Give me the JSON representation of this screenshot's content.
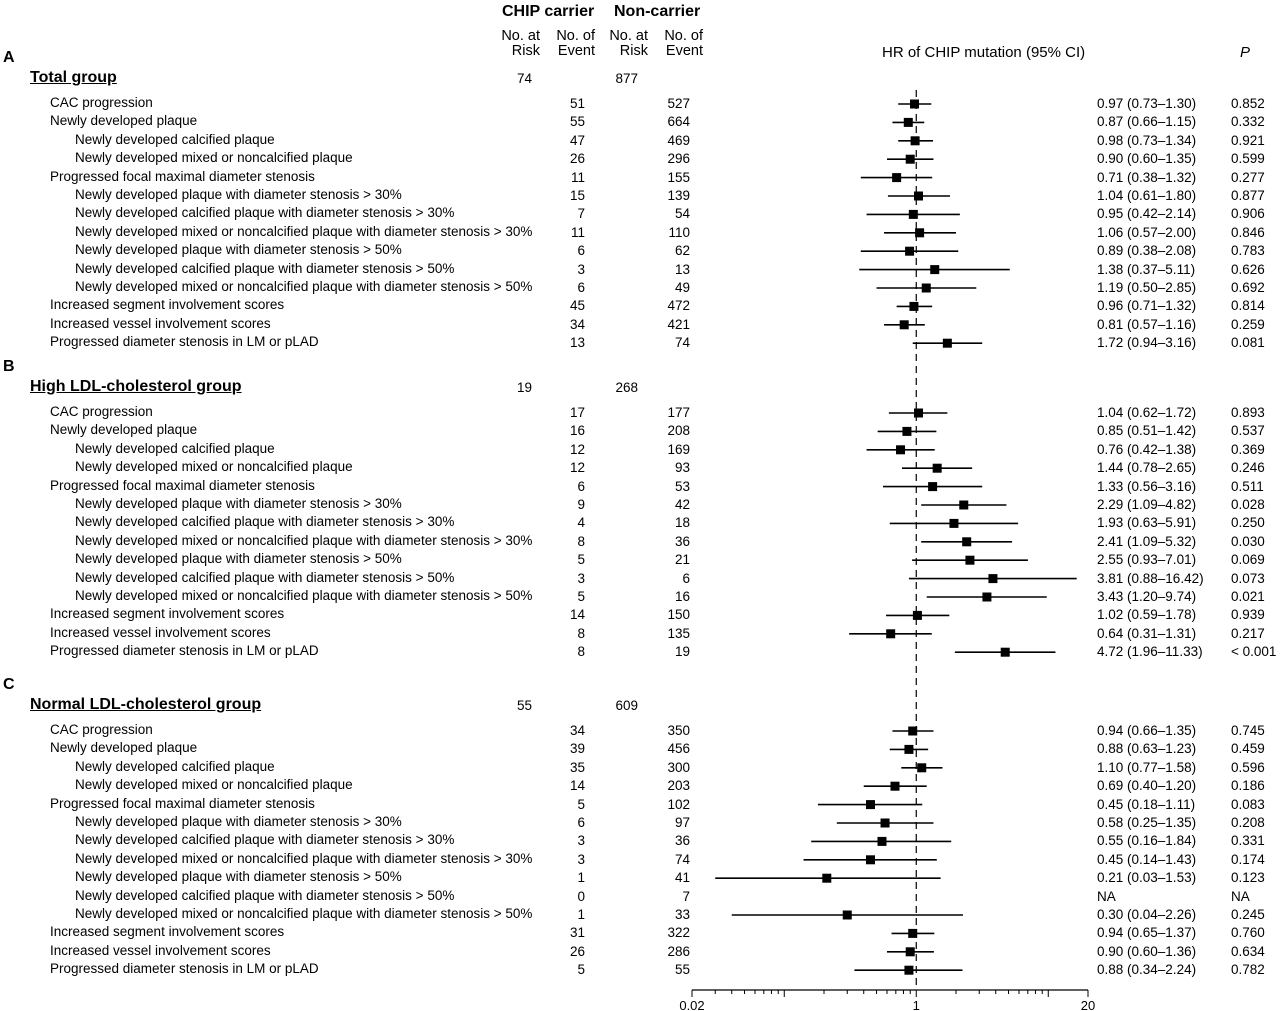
{
  "header": {
    "carrier_label": "CHIP carrier",
    "noncarrier_label": "Non-carrier",
    "no_at_risk": [
      "No. at",
      "Risk"
    ],
    "no_of_event": [
      "No. of",
      "Event"
    ],
    "hr_label": "HR of CHIP mutation (95% CI)",
    "p_label": "P"
  },
  "chart_data": {
    "type": "forest",
    "x_scale": "log",
    "xlim": [
      0.02,
      20
    ],
    "x_ticks": [
      "0.02",
      "1",
      "20"
    ],
    "reference_line": 1,
    "groups": [
      {
        "letter": "A",
        "title": "Total group",
        "carrier_at_risk": "74",
        "noncarrier_at_risk": "877",
        "rows": [
          {
            "label": "CAC progression",
            "indent": 1,
            "carrier_events": "51",
            "noncarrier_events": "527",
            "hr": 0.97,
            "lo": 0.73,
            "hi": 1.3,
            "hr_text": "0.97 (0.73–1.30)",
            "p": "0.852"
          },
          {
            "label": "Newly developed plaque",
            "indent": 1,
            "carrier_events": "55",
            "noncarrier_events": "664",
            "hr": 0.87,
            "lo": 0.66,
            "hi": 1.15,
            "hr_text": "0.87 (0.66–1.15)",
            "p": "0.332"
          },
          {
            "label": "Newly developed calcified plaque",
            "indent": 2,
            "carrier_events": "47",
            "noncarrier_events": "469",
            "hr": 0.98,
            "lo": 0.73,
            "hi": 1.34,
            "hr_text": "0.98 (0.73–1.34)",
            "p": "0.921"
          },
          {
            "label": "Newly developed mixed or noncalcified plaque",
            "indent": 2,
            "carrier_events": "26",
            "noncarrier_events": "296",
            "hr": 0.9,
            "lo": 0.6,
            "hi": 1.35,
            "hr_text": "0.90 (0.60–1.35)",
            "p": "0.599"
          },
          {
            "label": "Progressed focal maximal diameter stenosis",
            "indent": 1,
            "carrier_events": "11",
            "noncarrier_events": "155",
            "hr": 0.71,
            "lo": 0.38,
            "hi": 1.32,
            "hr_text": "0.71 (0.38–1.32)",
            "p": "0.277"
          },
          {
            "label": "Newly developed plaque with diameter stenosis > 30%",
            "indent": 2,
            "carrier_events": "15",
            "noncarrier_events": "139",
            "hr": 1.04,
            "lo": 0.61,
            "hi": 1.8,
            "hr_text": "1.04 (0.61–1.80)",
            "p": "0.877"
          },
          {
            "label": "Newly developed calcified plaque with diameter stenosis > 30%",
            "indent": 2,
            "carrier_events": "7",
            "noncarrier_events": "54",
            "hr": 0.95,
            "lo": 0.42,
            "hi": 2.14,
            "hr_text": "0.95 (0.42–2.14)",
            "p": "0.906"
          },
          {
            "label": "Newly developed mixed or noncalcified plaque with diameter stenosis > 30%",
            "indent": 2,
            "carrier_events": "11",
            "noncarrier_events": "110",
            "hr": 1.06,
            "lo": 0.57,
            "hi": 2.0,
            "hr_text": "1.06 (0.57–2.00)",
            "p": "0.846"
          },
          {
            "label": "Newly developed plaque with diameter stenosis > 50%",
            "indent": 2,
            "carrier_events": "6",
            "noncarrier_events": "62",
            "hr": 0.89,
            "lo": 0.38,
            "hi": 2.08,
            "hr_text": "0.89 (0.38–2.08)",
            "p": "0.783"
          },
          {
            "label": "Newly developed calcified plaque with diameter stenosis > 50%",
            "indent": 2,
            "carrier_events": "3",
            "noncarrier_events": "13",
            "hr": 1.38,
            "lo": 0.37,
            "hi": 5.11,
            "hr_text": "1.38 (0.37–5.11)",
            "p": "0.626"
          },
          {
            "label": "Newly developed mixed or noncalcified plaque with diameter stenosis > 50%",
            "indent": 2,
            "carrier_events": "6",
            "noncarrier_events": "49",
            "hr": 1.19,
            "lo": 0.5,
            "hi": 2.85,
            "hr_text": "1.19 (0.50–2.85)",
            "p": "0.692"
          },
          {
            "label": "Increased segment involvement scores",
            "indent": 1,
            "carrier_events": "45",
            "noncarrier_events": "472",
            "hr": 0.96,
            "lo": 0.71,
            "hi": 1.32,
            "hr_text": "0.96 (0.71–1.32)",
            "p": "0.814"
          },
          {
            "label": "Increased vessel involvement scores",
            "indent": 1,
            "carrier_events": "34",
            "noncarrier_events": "421",
            "hr": 0.81,
            "lo": 0.57,
            "hi": 1.16,
            "hr_text": "0.81 (0.57–1.16)",
            "p": "0.259"
          },
          {
            "label": "Progressed diameter stenosis in LM or pLAD",
            "indent": 1,
            "carrier_events": "13",
            "noncarrier_events": "74",
            "hr": 1.72,
            "lo": 0.94,
            "hi": 3.16,
            "hr_text": "1.72 (0.94–3.16)",
            "p": "0.081"
          }
        ]
      },
      {
        "letter": "B",
        "title": "High LDL-cholesterol group",
        "carrier_at_risk": "19",
        "noncarrier_at_risk": "268",
        "rows": [
          {
            "label": "CAC progression",
            "indent": 1,
            "carrier_events": "17",
            "noncarrier_events": "177",
            "hr": 1.04,
            "lo": 0.62,
            "hi": 1.72,
            "hr_text": "1.04 (0.62–1.72)",
            "p": "0.893"
          },
          {
            "label": "Newly developed plaque",
            "indent": 1,
            "carrier_events": "16",
            "noncarrier_events": "208",
            "hr": 0.85,
            "lo": 0.51,
            "hi": 1.42,
            "hr_text": "0.85 (0.51–1.42)",
            "p": "0.537"
          },
          {
            "label": "Newly developed calcified plaque",
            "indent": 2,
            "carrier_events": "12",
            "noncarrier_events": "169",
            "hr": 0.76,
            "lo": 0.42,
            "hi": 1.38,
            "hr_text": "0.76 (0.42–1.38)",
            "p": "0.369"
          },
          {
            "label": "Newly developed mixed or noncalcified plaque",
            "indent": 2,
            "carrier_events": "12",
            "noncarrier_events": "93",
            "hr": 1.44,
            "lo": 0.78,
            "hi": 2.65,
            "hr_text": "1.44 (0.78–2.65)",
            "p": "0.246"
          },
          {
            "label": "Progressed focal maximal diameter stenosis",
            "indent": 1,
            "carrier_events": "6",
            "noncarrier_events": "53",
            "hr": 1.33,
            "lo": 0.56,
            "hi": 3.16,
            "hr_text": "1.33 (0.56–3.16)",
            "p": "0.511"
          },
          {
            "label": "Newly developed plaque with diameter stenosis > 30%",
            "indent": 2,
            "carrier_events": "9",
            "noncarrier_events": "42",
            "hr": 2.29,
            "lo": 1.09,
            "hi": 4.82,
            "hr_text": "2.29 (1.09–4.82)",
            "p": "0.028"
          },
          {
            "label": "Newly developed calcified plaque with diameter stenosis > 30%",
            "indent": 2,
            "carrier_events": "4",
            "noncarrier_events": "18",
            "hr": 1.93,
            "lo": 0.63,
            "hi": 5.91,
            "hr_text": "1.93 (0.63–5.91)",
            "p": "0.250"
          },
          {
            "label": "Newly developed mixed or noncalcified plaque with diameter stenosis > 30%",
            "indent": 2,
            "carrier_events": "8",
            "noncarrier_events": "36",
            "hr": 2.41,
            "lo": 1.09,
            "hi": 5.32,
            "hr_text": "2.41 (1.09–5.32)",
            "p": "0.030"
          },
          {
            "label": "Newly developed plaque with diameter stenosis > 50%",
            "indent": 2,
            "carrier_events": "5",
            "noncarrier_events": "21",
            "hr": 2.55,
            "lo": 0.93,
            "hi": 7.01,
            "hr_text": "2.55 (0.93–7.01)",
            "p": "0.069"
          },
          {
            "label": "Newly developed calcified plaque with diameter stenosis > 50%",
            "indent": 2,
            "carrier_events": "3",
            "noncarrier_events": "6",
            "hr": 3.81,
            "lo": 0.88,
            "hi": 16.42,
            "hr_text": "3.81 (0.88–16.42)",
            "p": "0.073"
          },
          {
            "label": "Newly developed mixed or noncalcified plaque with diameter stenosis > 50%",
            "indent": 2,
            "carrier_events": "5",
            "noncarrier_events": "16",
            "hr": 3.43,
            "lo": 1.2,
            "hi": 9.74,
            "hr_text": "3.43 (1.20–9.74)",
            "p": "0.021"
          },
          {
            "label": "Increased segment involvement scores",
            "indent": 1,
            "carrier_events": "14",
            "noncarrier_events": "150",
            "hr": 1.02,
            "lo": 0.59,
            "hi": 1.78,
            "hr_text": "1.02 (0.59–1.78)",
            "p": "0.939"
          },
          {
            "label": "Increased vessel involvement scores",
            "indent": 1,
            "carrier_events": "8",
            "noncarrier_events": "135",
            "hr": 0.64,
            "lo": 0.31,
            "hi": 1.31,
            "hr_text": "0.64 (0.31–1.31)",
            "p": "0.217"
          },
          {
            "label": "Progressed diameter stenosis in LM or pLAD",
            "indent": 1,
            "carrier_events": "8",
            "noncarrier_events": "19",
            "hr": 4.72,
            "lo": 1.96,
            "hi": 11.33,
            "hr_text": "4.72 (1.96–11.33)",
            "p": "< 0.001"
          }
        ]
      },
      {
        "letter": "C",
        "title": "Normal LDL-cholesterol group",
        "carrier_at_risk": "55",
        "noncarrier_at_risk": "609",
        "rows": [
          {
            "label": "CAC progression",
            "indent": 1,
            "carrier_events": "34",
            "noncarrier_events": "350",
            "hr": 0.94,
            "lo": 0.66,
            "hi": 1.35,
            "hr_text": "0.94 (0.66–1.35)",
            "p": "0.745"
          },
          {
            "label": "Newly developed plaque",
            "indent": 1,
            "carrier_events": "39",
            "noncarrier_events": "456",
            "hr": 0.88,
            "lo": 0.63,
            "hi": 1.23,
            "hr_text": "0.88 (0.63–1.23)",
            "p": "0.459"
          },
          {
            "label": "Newly developed calcified plaque",
            "indent": 2,
            "carrier_events": "35",
            "noncarrier_events": "300",
            "hr": 1.1,
            "lo": 0.77,
            "hi": 1.58,
            "hr_text": "1.10 (0.77–1.58)",
            "p": "0.596"
          },
          {
            "label": "Newly developed mixed or noncalcified plaque",
            "indent": 2,
            "carrier_events": "14",
            "noncarrier_events": "203",
            "hr": 0.69,
            "lo": 0.4,
            "hi": 1.2,
            "hr_text": "0.69 (0.40–1.20)",
            "p": "0.186"
          },
          {
            "label": "Progressed focal maximal diameter stenosis",
            "indent": 1,
            "carrier_events": "5",
            "noncarrier_events": "102",
            "hr": 0.45,
            "lo": 0.18,
            "hi": 1.11,
            "hr_text": "0.45 (0.18–1.11)",
            "p": "0.083"
          },
          {
            "label": "Newly developed plaque with diameter stenosis > 30%",
            "indent": 2,
            "carrier_events": "6",
            "noncarrier_events": "97",
            "hr": 0.58,
            "lo": 0.25,
            "hi": 1.35,
            "hr_text": "0.58 (0.25–1.35)",
            "p": "0.208"
          },
          {
            "label": "Newly developed calcified plaque with diameter stenosis > 30%",
            "indent": 2,
            "carrier_events": "3",
            "noncarrier_events": "36",
            "hr": 0.55,
            "lo": 0.16,
            "hi": 1.84,
            "hr_text": "0.55 (0.16–1.84)",
            "p": "0.331"
          },
          {
            "label": "Newly developed mixed or noncalcified plaque with diameter stenosis > 30%",
            "indent": 2,
            "carrier_events": "3",
            "noncarrier_events": "74",
            "hr": 0.45,
            "lo": 0.14,
            "hi": 1.43,
            "hr_text": "0.45 (0.14–1.43)",
            "p": "0.174"
          },
          {
            "label": "Newly developed plaque with diameter stenosis > 50%",
            "indent": 2,
            "carrier_events": "1",
            "noncarrier_events": "41",
            "hr": 0.21,
            "lo": 0.03,
            "hi": 1.53,
            "hr_text": "0.21 (0.03–1.53)",
            "p": "0.123"
          },
          {
            "label": "Newly developed calcified plaque with diameter stenosis > 50%",
            "indent": 2,
            "carrier_events": "0",
            "noncarrier_events": "7",
            "hr": null,
            "lo": null,
            "hi": null,
            "hr_text": "NA",
            "p": "NA"
          },
          {
            "label": "Newly developed mixed or noncalcified plaque with diameter stenosis > 50%",
            "indent": 2,
            "carrier_events": "1",
            "noncarrier_events": "33",
            "hr": 0.3,
            "lo": 0.04,
            "hi": 2.26,
            "hr_text": "0.30 (0.04–2.26)",
            "p": "0.245"
          },
          {
            "label": "Increased segment involvement scores",
            "indent": 1,
            "carrier_events": "31",
            "noncarrier_events": "322",
            "hr": 0.94,
            "lo": 0.65,
            "hi": 1.37,
            "hr_text": "0.94 (0.65–1.37)",
            "p": "0.760"
          },
          {
            "label": "Increased vessel involvement scores",
            "indent": 1,
            "carrier_events": "26",
            "noncarrier_events": "286",
            "hr": 0.9,
            "lo": 0.6,
            "hi": 1.36,
            "hr_text": "0.90 (0.60–1.36)",
            "p": "0.634"
          },
          {
            "label": "Progressed diameter stenosis in LM or pLAD",
            "indent": 1,
            "carrier_events": "5",
            "noncarrier_events": "55",
            "hr": 0.88,
            "lo": 0.34,
            "hi": 2.24,
            "hr_text": "0.88 (0.34–2.24)",
            "p": "0.782"
          }
        ]
      }
    ]
  }
}
